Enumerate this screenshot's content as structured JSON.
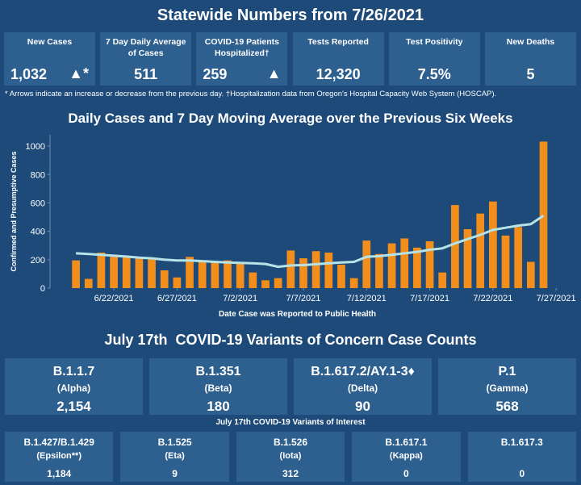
{
  "header": {
    "title": "Statewide Numbers from 7/26/2021"
  },
  "kpis": [
    {
      "label": "New Cases",
      "value": "1,032",
      "indicator": "▲*"
    },
    {
      "label": "7 Day Daily Average of Cases",
      "value": "511"
    },
    {
      "label": "COVID-19 Patients Hospitalized†",
      "value": "259",
      "indicator": "▲"
    },
    {
      "label": "Tests Reported",
      "value": "12,320"
    },
    {
      "label": "Test Positivity",
      "value": "7.5%"
    },
    {
      "label": "New Deaths",
      "value": "5"
    }
  ],
  "note": "* Arrows indicate an increase or decrease from the previous day. †Hospitalization data from Oregon's Hospital Capacity Web System (HOSCAP).",
  "chart_data": {
    "type": "bar",
    "title": "Daily Cases and 7 Day Moving Average over the Previous Six Weeks",
    "x_label": "Date Case was Reported to Public Health",
    "y_label": "Confirmed and Presumptive Cases",
    "x": [
      "6/19/2021",
      "6/20/2021",
      "6/21/2021",
      "6/22/2021",
      "6/23/2021",
      "6/24/2021",
      "6/25/2021",
      "6/26/2021",
      "6/27/2021",
      "6/28/2021",
      "6/29/2021",
      "6/30/2021",
      "7/1/2021",
      "7/2/2021",
      "7/3/2021",
      "7/4/2021",
      "7/5/2021",
      "7/6/2021",
      "7/7/2021",
      "7/8/2021",
      "7/9/2021",
      "7/10/2021",
      "7/11/2021",
      "7/12/2021",
      "7/13/2021",
      "7/14/2021",
      "7/15/2021",
      "7/16/2021",
      "7/17/2021",
      "7/18/2021",
      "7/19/2021",
      "7/20/2021",
      "7/21/2021",
      "7/22/2021",
      "7/23/2021",
      "7/24/2021",
      "7/25/2021",
      "7/26/2021"
    ],
    "series": [
      {
        "type": "bar",
        "color": "#f28e1c",
        "values": [
          195,
          65,
          250,
          220,
          225,
          220,
          215,
          125,
          75,
          220,
          190,
          180,
          195,
          175,
          110,
          55,
          70,
          265,
          210,
          260,
          250,
          165,
          70,
          335,
          240,
          315,
          350,
          285,
          330,
          110,
          585,
          415,
          525,
          610,
          370,
          430,
          185,
          1032
        ]
      },
      {
        "type": "line",
        "color": "#b5e3e8",
        "values": [
          245,
          240,
          235,
          228,
          222,
          215,
          210,
          200,
          195,
          195,
          190,
          185,
          180,
          178,
          175,
          170,
          150,
          160,
          162,
          168,
          175,
          180,
          185,
          220,
          225,
          235,
          245,
          255,
          270,
          280,
          315,
          345,
          375,
          410,
          425,
          440,
          450,
          510
        ]
      }
    ],
    "ylim": [
      0,
      1080
    ],
    "yticks": [
      0,
      200,
      400,
      600,
      800,
      1000
    ],
    "xticks": [
      "6/22/2021",
      "6/27/2021",
      "7/2/2021",
      "7/7/2021",
      "7/12/2021",
      "7/17/2021",
      "7/22/2021",
      "7/27/2021"
    ],
    "grid": false
  },
  "variants_of_concern": {
    "title": "July 17th  COVID-19 Variants of Concern Case Counts",
    "items": [
      {
        "name": "B.1.1.7",
        "label": "(Alpha)",
        "count": "2,154"
      },
      {
        "name": "B.1.351",
        "label": "(Beta)",
        "count": "180"
      },
      {
        "name": "B.1.617.2/AY.1-3♦",
        "label": "(Delta)",
        "count": "90"
      },
      {
        "name": "P.1",
        "label": "(Gamma)",
        "count": "568"
      }
    ]
  },
  "variants_of_interest": {
    "title": "July 17th COVID-19 Variants of Interest",
    "items": [
      {
        "name": "B.1.427/B.1.429",
        "label": "(Epsilon**)",
        "count": "1,184"
      },
      {
        "name": "B.1.525",
        "label": "(Eta)",
        "count": "9"
      },
      {
        "name": "B.1.526",
        "label": "(Iota)",
        "count": "312"
      },
      {
        "name": "B.1.617.1",
        "label": "(Kappa)",
        "count": "0"
      },
      {
        "name": "B.1.617.3",
        "count": "0"
      }
    ]
  }
}
